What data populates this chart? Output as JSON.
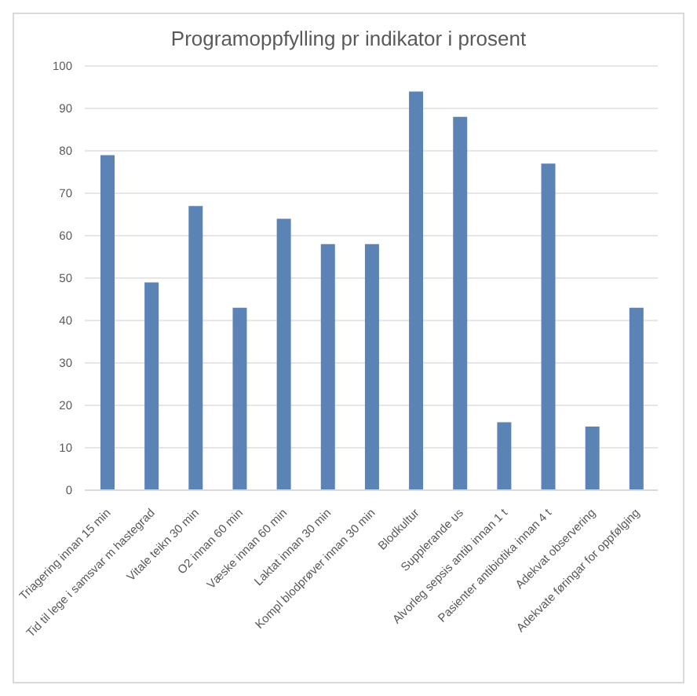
{
  "chart_data": {
    "type": "bar",
    "title": "Programoppfylling pr indikator i prosent",
    "categories": [
      "Triagering innan 15 min",
      "Tid til lege i samsvar m hastegrad",
      "Vitale teikn 30 min",
      "O2 innan 60 min",
      "Væske innan 60 min",
      "Laktat innan 30 min",
      "Kompl blodprøver innan 30 min",
      "Blodkultur",
      "Supplerande us",
      "Alvorleg sepsis antib innan 1 t",
      "Pasienter antibiotika innan 4 t",
      "Adekvat observering",
      "Adekvate føringar for oppfølging"
    ],
    "values": [
      79,
      49,
      67,
      43,
      64,
      58,
      58,
      94,
      88,
      16,
      77,
      15,
      43
    ],
    "color": "#5b83b6",
    "ylim": [
      0,
      100
    ],
    "yticks": [
      0,
      10,
      20,
      30,
      40,
      50,
      60,
      70,
      80,
      90,
      100
    ],
    "grid": "y",
    "legend": false
  }
}
